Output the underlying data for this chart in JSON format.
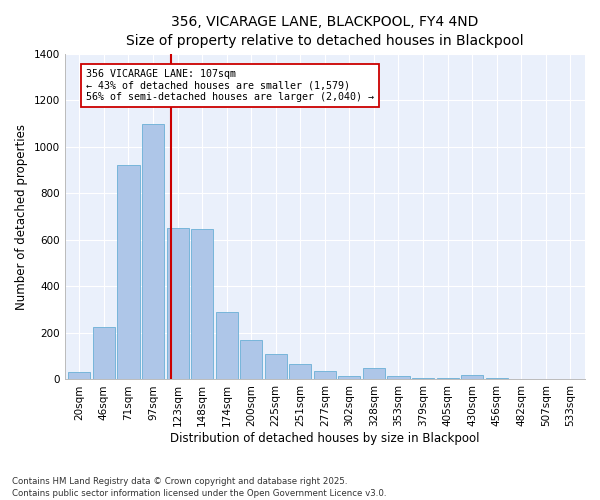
{
  "title": "356, VICARAGE LANE, BLACKPOOL, FY4 4ND",
  "subtitle": "Size of property relative to detached houses in Blackpool",
  "xlabel": "Distribution of detached houses by size in Blackpool",
  "ylabel": "Number of detached properties",
  "categories": [
    "20sqm",
    "46sqm",
    "71sqm",
    "97sqm",
    "123sqm",
    "148sqm",
    "174sqm",
    "200sqm",
    "225sqm",
    "251sqm",
    "277sqm",
    "302sqm",
    "328sqm",
    "353sqm",
    "379sqm",
    "405sqm",
    "430sqm",
    "456sqm",
    "482sqm",
    "507sqm",
    "533sqm"
  ],
  "bar_heights": [
    30,
    225,
    920,
    1100,
    650,
    645,
    290,
    170,
    110,
    65,
    35,
    15,
    50,
    15,
    8,
    5,
    20,
    5,
    2,
    0,
    0
  ],
  "bar_color": "#aec6e8",
  "bar_edge_color": "#6aafd6",
  "red_line_x": 3.72,
  "annotation_text": "356 VICARAGE LANE: 107sqm\n← 43% of detached houses are smaller (1,579)\n56% of semi-detached houses are larger (2,040) →",
  "annotation_box_color": "#ffffff",
  "annotation_box_edge": "#cc0000",
  "property_line_color": "#cc0000",
  "ylim": [
    0,
    1400
  ],
  "yticks": [
    0,
    200,
    400,
    600,
    800,
    1000,
    1200,
    1400
  ],
  "background_color": "#eaf0fb",
  "footer_text": "Contains HM Land Registry data © Crown copyright and database right 2025.\nContains public sector information licensed under the Open Government Licence v3.0.",
  "title_fontsize": 10,
  "xlabel_fontsize": 8.5,
  "ylabel_fontsize": 8.5,
  "tick_fontsize": 7.5,
  "ann_fontsize": 7.2
}
